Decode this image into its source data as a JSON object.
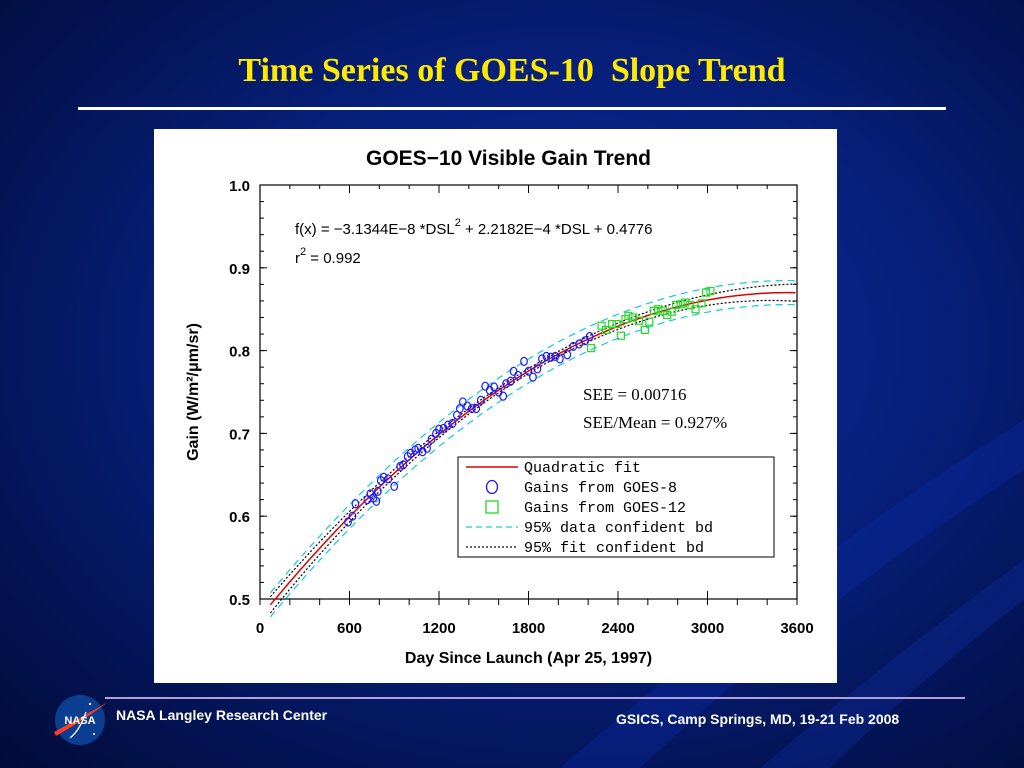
{
  "slide": {
    "title": "Time Series of GOES-10  Slope Trend",
    "footer_left": "NASA Langley Research Center",
    "footer_right": "GSICS, Camp Springs, MD, 19-21 Feb 2008",
    "logo_text": "NASA"
  },
  "chart_data": {
    "type": "scatter",
    "title": "GOES−10 Visible Gain Trend",
    "xlabel": "Day Since Launch (Apr 25, 1997)",
    "ylabel": "Gain (W/m²/μm/sr)",
    "xlim": [
      0,
      3600
    ],
    "ylim": [
      0.5,
      1.0
    ],
    "xticks": [
      "0",
      "600",
      "1200",
      "1800",
      "2400",
      "3000",
      "3600"
    ],
    "yticks": [
      "0.5",
      "0.6",
      "0.7",
      "0.8",
      "0.9",
      "1.0"
    ],
    "equation": {
      "prefix": "f(x) = −3.1344E−8 *DSL",
      "exp": "2",
      "suffix": " + 2.2182E−4 *DSL + 0.4776",
      "r2_label": "r",
      "r2_exp": "2",
      "r2_value": " = 0.992"
    },
    "fit_coefficients": {
      "a": -3.1344e-08,
      "b": 0.00022182,
      "c": 0.4776
    },
    "stats": [
      "SEE = 0.00716",
      "SEE/Mean = 0.927%"
    ],
    "legend": [
      {
        "label": "Quadratic fit",
        "symbol": "line",
        "color": "#e00000"
      },
      {
        "label": "Gains from GOES-8",
        "symbol": "circle",
        "color": "#1a1aff"
      },
      {
        "label": "Gains from GOES-12",
        "symbol": "square",
        "color": "#22dd22"
      },
      {
        "label": "95% data confident bd",
        "symbol": "dashed",
        "color": "#22cce0"
      },
      {
        "label": "95% fit confident bd",
        "symbol": "dotted",
        "color": "#000000"
      }
    ],
    "legend_position": "lower-right",
    "series": [
      {
        "name": "Gains from GOES-8",
        "color": "#1a1aff",
        "marker": "circle",
        "points": [
          [
            590,
            0.593
          ],
          [
            620,
            0.6
          ],
          [
            640,
            0.615
          ],
          [
            720,
            0.62
          ],
          [
            740,
            0.627
          ],
          [
            760,
            0.622
          ],
          [
            780,
            0.618
          ],
          [
            790,
            0.63
          ],
          [
            810,
            0.643
          ],
          [
            830,
            0.647
          ],
          [
            860,
            0.645
          ],
          [
            900,
            0.636
          ],
          [
            940,
            0.66
          ],
          [
            960,
            0.662
          ],
          [
            990,
            0.672
          ],
          [
            1010,
            0.676
          ],
          [
            1040,
            0.68
          ],
          [
            1060,
            0.682
          ],
          [
            1090,
            0.678
          ],
          [
            1120,
            0.682
          ],
          [
            1150,
            0.693
          ],
          [
            1180,
            0.7
          ],
          [
            1200,
            0.705
          ],
          [
            1230,
            0.706
          ],
          [
            1260,
            0.71
          ],
          [
            1290,
            0.712
          ],
          [
            1320,
            0.722
          ],
          [
            1340,
            0.73
          ],
          [
            1360,
            0.738
          ],
          [
            1390,
            0.733
          ],
          [
            1420,
            0.73
          ],
          [
            1450,
            0.73
          ],
          [
            1480,
            0.74
          ],
          [
            1510,
            0.757
          ],
          [
            1540,
            0.752
          ],
          [
            1570,
            0.756
          ],
          [
            1600,
            0.75
          ],
          [
            1630,
            0.745
          ],
          [
            1650,
            0.76
          ],
          [
            1680,
            0.763
          ],
          [
            1700,
            0.775
          ],
          [
            1730,
            0.77
          ],
          [
            1770,
            0.787
          ],
          [
            1800,
            0.775
          ],
          [
            1830,
            0.768
          ],
          [
            1860,
            0.778
          ],
          [
            1890,
            0.79
          ],
          [
            1920,
            0.793
          ],
          [
            1950,
            0.792
          ],
          [
            1980,
            0.793
          ],
          [
            2010,
            0.79
          ],
          [
            2060,
            0.795
          ],
          [
            2100,
            0.805
          ],
          [
            2140,
            0.808
          ],
          [
            2180,
            0.812
          ],
          [
            2210,
            0.817
          ]
        ]
      },
      {
        "name": "Gains from GOES-12",
        "color": "#22dd22",
        "marker": "square",
        "points": [
          [
            2220,
            0.803
          ],
          [
            2290,
            0.83
          ],
          [
            2320,
            0.825
          ],
          [
            2360,
            0.832
          ],
          [
            2390,
            0.832
          ],
          [
            2420,
            0.818
          ],
          [
            2450,
            0.838
          ],
          [
            2470,
            0.842
          ],
          [
            2500,
            0.84
          ],
          [
            2540,
            0.836
          ],
          [
            2580,
            0.825
          ],
          [
            2610,
            0.835
          ],
          [
            2640,
            0.848
          ],
          [
            2670,
            0.85
          ],
          [
            2700,
            0.848
          ],
          [
            2730,
            0.843
          ],
          [
            2760,
            0.847
          ],
          [
            2790,
            0.855
          ],
          [
            2820,
            0.856
          ],
          [
            2850,
            0.858
          ],
          [
            2880,
            0.855
          ],
          [
            2920,
            0.85
          ],
          [
            2960,
            0.857
          ],
          [
            2990,
            0.87
          ],
          [
            3020,
            0.872
          ]
        ]
      }
    ],
    "fit_range": [
      70,
      3600
    ],
    "data_band_halfwidth": 0.0145,
    "fit_band_halfwidth_edges": 0.0105,
    "fit_band_halfwidth_center": 0.003,
    "grid": false
  }
}
